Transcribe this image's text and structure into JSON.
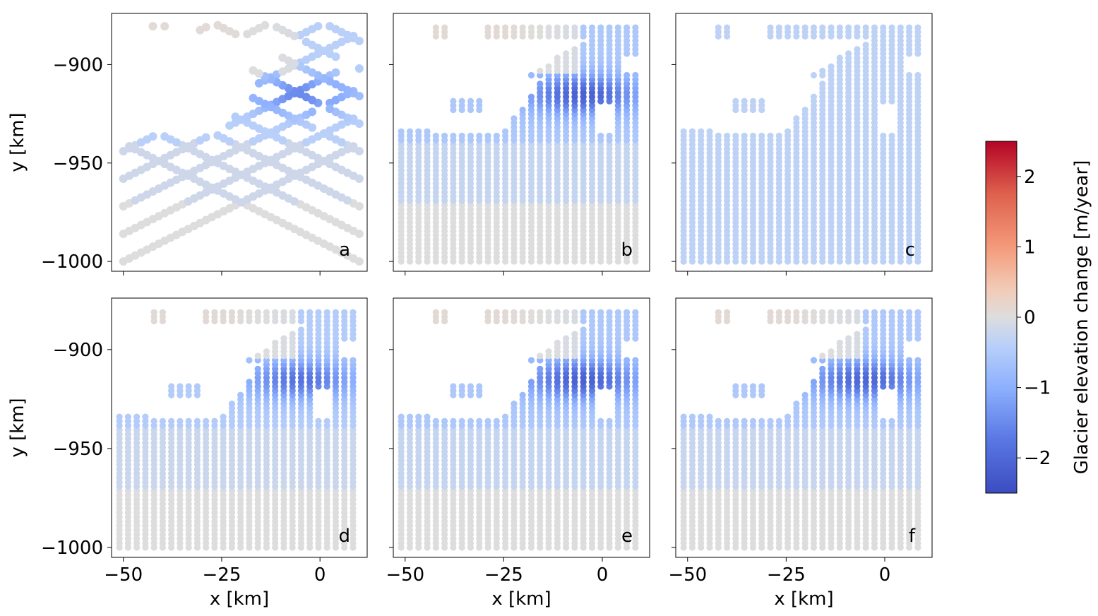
{
  "figure": {
    "colorbar": {
      "label": "Glacier elevation change [m/year]",
      "range": [
        -2.5,
        2.5
      ],
      "ticks": [
        2,
        1,
        0,
        -1,
        -2
      ],
      "tick_labels": [
        "2",
        "1",
        "0",
        "−1",
        "−2"
      ],
      "colormap": "coolwarm",
      "colors": {
        "low": "#3b4cc0",
        "mid": "#dddddd",
        "high": "#b40426"
      }
    }
  },
  "chart_data": [
    {
      "type": "scatter",
      "panel": "a",
      "xlabel": "",
      "ylabel": "y [km]",
      "xlim": [
        -53,
        12
      ],
      "ylim": [
        -1005,
        -874
      ],
      "x_ticks": [],
      "y_ticks": [
        "−900",
        "−950",
        "−1000"
      ],
      "description_style": "sparse survey tracks"
    },
    {
      "type": "scatter",
      "panel": "b",
      "xlabel": "",
      "ylabel": "",
      "xlim": [
        -53,
        12
      ],
      "ylim": [
        -1005,
        -874
      ],
      "x_ticks": [],
      "y_ticks": [],
      "description_style": "interpolated field"
    },
    {
      "type": "scatter",
      "panel": "c",
      "xlabel": "",
      "ylabel": "",
      "xlim": [
        -53,
        12
      ],
      "ylim": [
        -1005,
        -874
      ],
      "x_ticks": [],
      "y_ticks": [],
      "description_style": "uniform field"
    },
    {
      "type": "scatter",
      "panel": "d",
      "xlabel": "x [km]",
      "ylabel": "y [km]",
      "xlim": [
        -53,
        12
      ],
      "ylim": [
        -1005,
        -874
      ],
      "x_ticks": [
        "−50",
        "−25",
        "0"
      ],
      "y_ticks": [
        "−900",
        "−950",
        "−1000"
      ],
      "description_style": "interpolated field"
    },
    {
      "type": "scatter",
      "panel": "e",
      "xlabel": "x [km]",
      "ylabel": "",
      "xlim": [
        -53,
        12
      ],
      "ylim": [
        -1005,
        -874
      ],
      "x_ticks": [
        "−50",
        "−25",
        "0"
      ],
      "y_ticks": [],
      "description_style": "interpolated field"
    },
    {
      "type": "scatter",
      "panel": "f",
      "xlabel": "x [km]",
      "ylabel": "",
      "xlim": [
        -53,
        12
      ],
      "ylim": [
        -1005,
        -874
      ],
      "x_ticks": [
        "−50",
        "−25",
        "0"
      ],
      "y_ticks": [],
      "description_style": "interpolated field"
    }
  ]
}
